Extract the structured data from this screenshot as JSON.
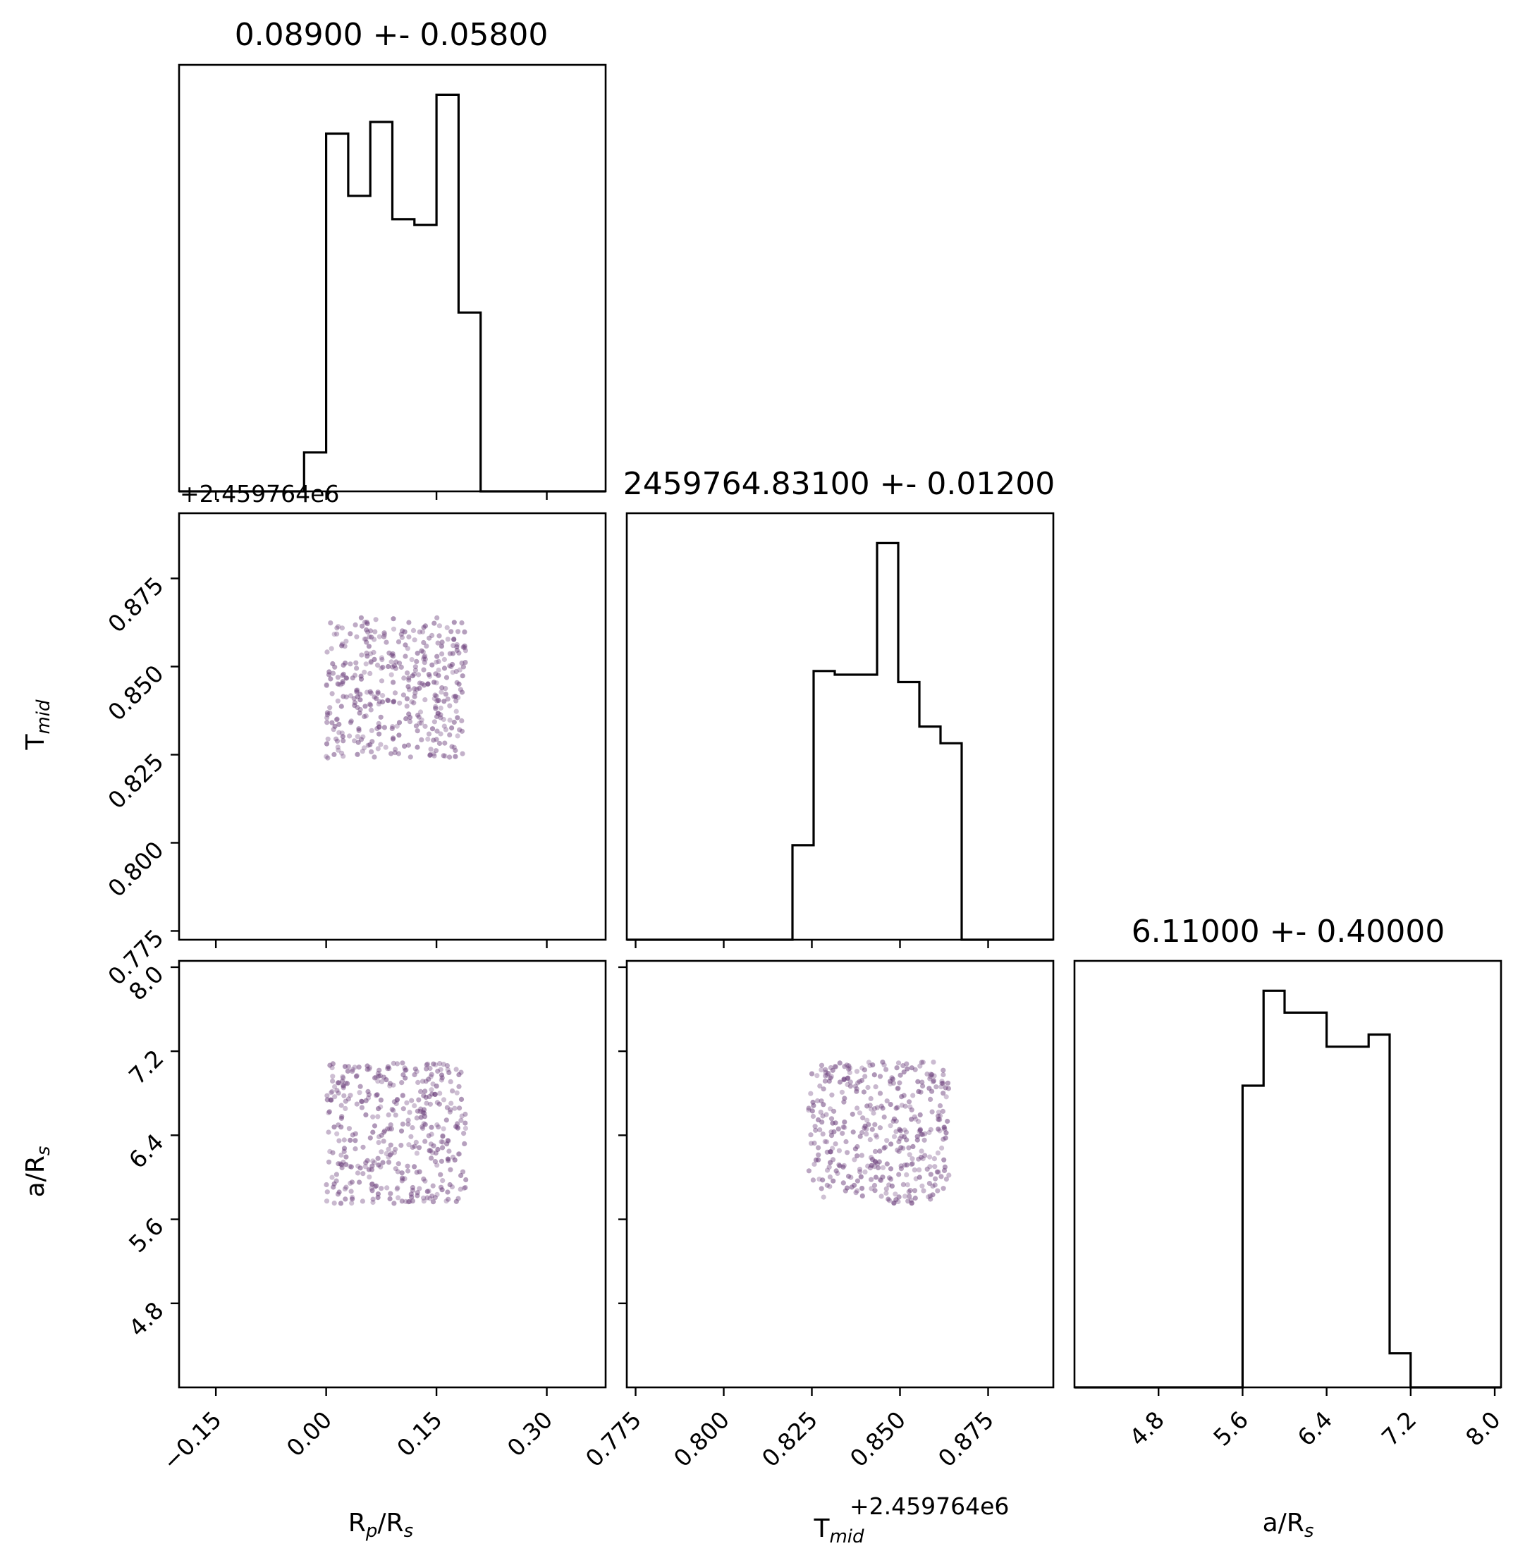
{
  "colors": {
    "axes": "#000000",
    "points": "#6a3d7a",
    "background": "#ffffff"
  },
  "chart_data": {
    "type": "corner",
    "parameters": [
      {
        "label": "R_p/R_s",
        "title": "0.08900 +- 0.05800",
        "range": [
          -0.2,
          0.38
        ],
        "ticks": [
          -0.15,
          0.0,
          0.15,
          0.3
        ],
        "tick_labels": [
          "−0.15",
          "0.00",
          "0.15",
          "0.30"
        ],
        "histogram": {
          "edges": [
            -0.2,
            -0.03,
            0.0,
            0.03,
            0.06,
            0.09,
            0.12,
            0.15,
            0.18,
            0.21,
            0.38
          ],
          "counts": [
            0,
            1,
            9.2,
            7.6,
            9.5,
            7.0,
            6.85,
            10.2,
            4.6,
            0
          ]
        },
        "scatter_support": [
          0.0,
          0.19
        ]
      },
      {
        "label": "T_mid",
        "title": "2459764.83100 +- 0.01200",
        "offset_label": "+2.459764e6",
        "range": [
          0.7725,
          0.8935
        ],
        "ticks": [
          0.775,
          0.8,
          0.825,
          0.85,
          0.875
        ],
        "tick_labels": [
          "0.775",
          "0.800",
          "0.825",
          "0.850",
          "0.875"
        ],
        "histogram": {
          "edges": [
            0.7725,
            0.8195,
            0.8255,
            0.8315,
            0.8435,
            0.8495,
            0.8555,
            0.8615,
            0.8675,
            0.8935
          ],
          "counts": [
            0,
            2.55,
            7.25,
            7.15,
            10.7,
            6.95,
            5.75,
            5.3,
            0
          ]
        },
        "scatter_support": [
          0.824,
          0.864
        ]
      },
      {
        "label": "a/R_s",
        "title": "6.11000 +- 0.40000",
        "range": [
          4.0,
          8.06
        ],
        "ticks": [
          4.8,
          5.6,
          6.4,
          7.2,
          8.0
        ],
        "tick_labels": [
          "4.8",
          "5.6",
          "6.4",
          "7.2",
          "8.0"
        ],
        "histogram": {
          "edges": [
            4.0,
            5.6,
            5.8,
            6.0,
            6.4,
            6.8,
            7.0,
            7.2,
            8.06
          ],
          "counts": [
            0,
            6.2,
            8.15,
            7.7,
            7.0,
            7.25,
            0.7,
            0
          ]
        },
        "scatter_support": [
          5.75,
          7.1
        ]
      }
    ],
    "scatter_points_per_panel": 400,
    "axis_labels": {
      "x": [
        "R_p/R_s",
        "T_mid",
        "a/R_s"
      ],
      "y": [
        "T_mid",
        "a/R_s"
      ]
    }
  }
}
